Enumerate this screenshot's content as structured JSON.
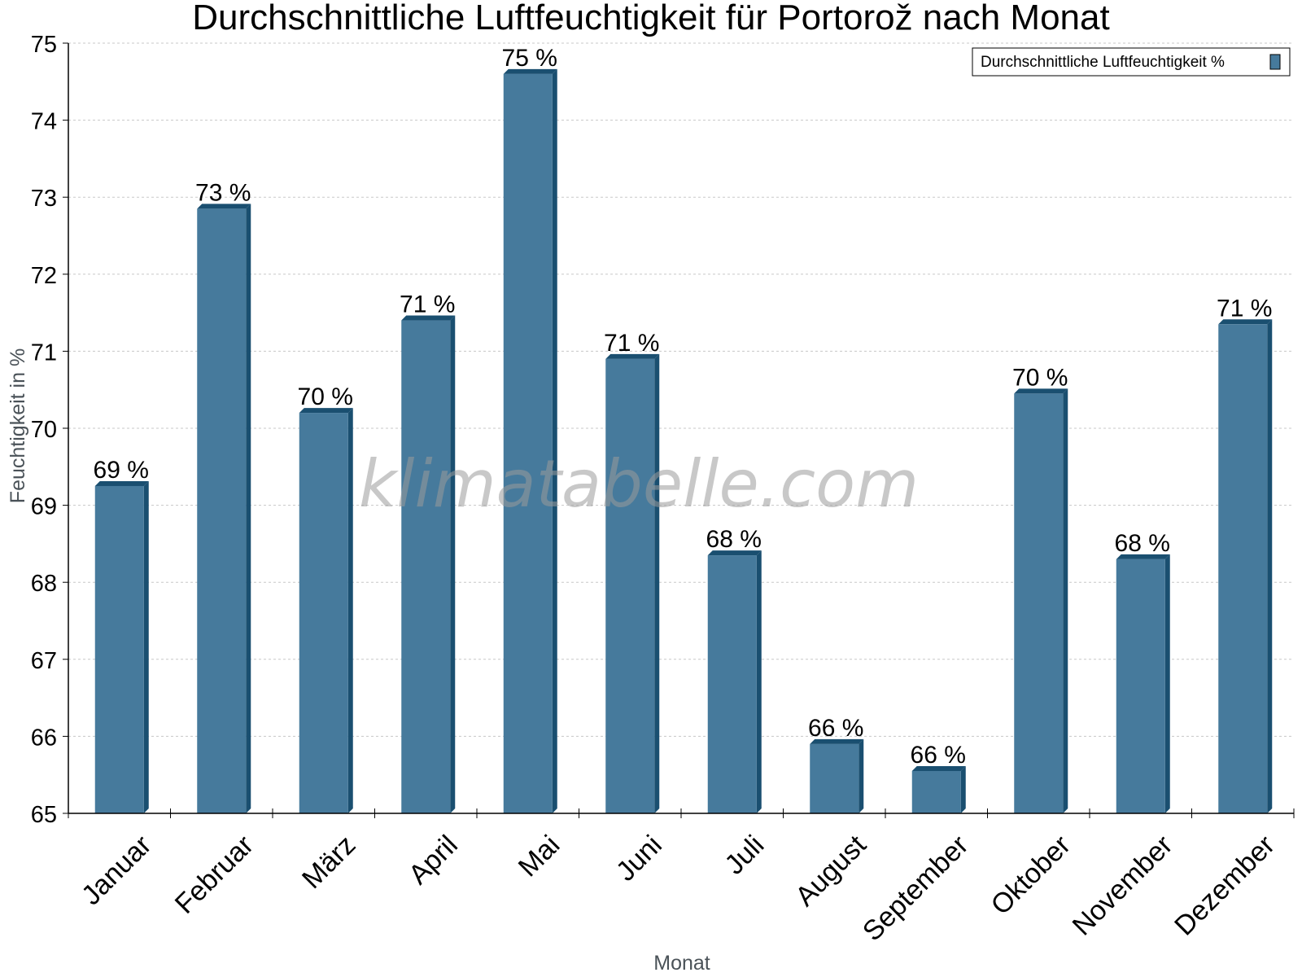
{
  "chart_data": {
    "type": "bar",
    "title": "Durchschnittliche Luftfeuchtigkeit für Portorož nach Monat",
    "xlabel": "Monat",
    "ylabel": "Feuchtigkeit in %",
    "ylim": [
      65,
      75
    ],
    "yticks": [
      65,
      66,
      67,
      68,
      69,
      70,
      71,
      72,
      73,
      74,
      75
    ],
    "grid": true,
    "legend_position": "top-right",
    "categories": [
      "Januar",
      "Februar",
      "März",
      "April",
      "Mai",
      "Juni",
      "Juli",
      "August",
      "September",
      "Oktober",
      "November",
      "Dezember"
    ],
    "series": [
      {
        "name": "Durchschnittliche Luftfeuchtigkeit %",
        "color": "#467a9c",
        "values": [
          69.25,
          72.85,
          70.2,
          71.4,
          74.6,
          70.9,
          68.35,
          65.9,
          65.55,
          70.45,
          68.3,
          71.35
        ],
        "labels": [
          "69 %",
          "73 %",
          "70 %",
          "71 %",
          "75 %",
          "71 %",
          "68 %",
          "66 %",
          "66 %",
          "70 %",
          "68 %",
          "71 %"
        ]
      }
    ]
  },
  "watermark": "klimatabelle.com",
  "colors": {
    "bar_front": "#467a9c",
    "bar_side": "#1a4f70",
    "grid": "#c8c8c8",
    "axis": "#000000"
  }
}
